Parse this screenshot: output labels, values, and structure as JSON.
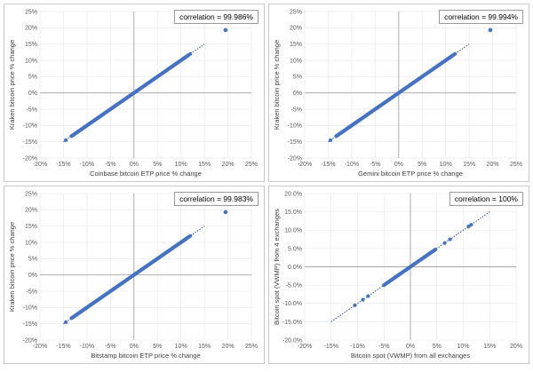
{
  "chart_data": [
    {
      "type": "scatter",
      "id": "kraken_vs_coinbase",
      "xlabel": "Coinbase bitcoin ETP price % change",
      "ylabel": "Kraken bitcoin price % change",
      "xlim": [
        -20,
        25
      ],
      "ylim": [
        -20,
        25
      ],
      "xticks": [
        "-20%",
        "-15%",
        "-10%",
        "-5%",
        "0%",
        "5%",
        "10%",
        "15%",
        "20%",
        "25%"
      ],
      "yticks": [
        "-20%",
        "-15%",
        "-10%",
        "-5%",
        "0%",
        "5%",
        "10%",
        "15%",
        "20%",
        "25%"
      ],
      "annotation": "correlation = 99.986%",
      "trendline": {
        "style": "dotted",
        "x_range": [
          -15,
          15
        ]
      },
      "outlier": {
        "x": 19.5,
        "y": 19.3
      },
      "point_range": [
        -14.5,
        12
      ]
    },
    {
      "type": "scatter",
      "id": "kraken_vs_gemini",
      "xlabel": "Gemini bitcoin ETP price % change",
      "ylabel": "Kraken bitcoin price % change",
      "xlim": [
        -20,
        25
      ],
      "ylim": [
        -20,
        25
      ],
      "xticks": [
        "-20%",
        "-15%",
        "-10%",
        "-5%",
        "0%",
        "5%",
        "10%",
        "15%",
        "20%",
        "25%"
      ],
      "yticks": [
        "-20%",
        "-15%",
        "-10%",
        "-5%",
        "0%",
        "5%",
        "10%",
        "15%",
        "20%",
        "25%"
      ],
      "annotation": "correlation = 99.994%",
      "trendline": {
        "style": "dotted",
        "x_range": [
          -15,
          15
        ]
      },
      "outlier": {
        "x": 19.5,
        "y": 19.3
      },
      "point_range": [
        -14.5,
        12
      ]
    },
    {
      "type": "scatter",
      "id": "kraken_vs_bitstamp",
      "xlabel": "Bitstamp bitcoin ETP price % change",
      "ylabel": "Kraken bitcoin price % change",
      "xlim": [
        -20,
        25
      ],
      "ylim": [
        -20,
        25
      ],
      "xticks": [
        "-20%",
        "-15%",
        "-10%",
        "-5%",
        "0%",
        "5%",
        "10%",
        "15%",
        "20%",
        "25%"
      ],
      "yticks": [
        "-20%",
        "-15%",
        "-10%",
        "-5%",
        "0%",
        "5%",
        "10%",
        "15%",
        "20%",
        "25%"
      ],
      "annotation": "correlation = 99.983%",
      "trendline": {
        "style": "dotted",
        "x_range": [
          -15,
          15
        ]
      },
      "outlier": {
        "x": 19.5,
        "y": 19.3
      },
      "point_range": [
        -14.5,
        12
      ]
    },
    {
      "type": "scatter",
      "id": "vwmp_4_vs_all",
      "xlabel": "Bitcoin spot (VWMP) from all exchanges",
      "ylabel": "Bitcoin spot (VWMP) from 4 exchanges",
      "xlim": [
        -20,
        20
      ],
      "ylim": [
        -20,
        20
      ],
      "xticks": [
        "-20%",
        "-15%",
        "-10%",
        "-5%",
        "0%",
        "5%",
        "10%",
        "15%",
        "20%"
      ],
      "yticks": [
        "-20.0%",
        "-15.0%",
        "-10.0%",
        "-5.0%",
        "0.0%",
        "5.0%",
        "10.0%",
        "15.0%",
        "20.0%"
      ],
      "annotation": "correlation = 100%",
      "trendline": {
        "style": "dotted",
        "x_range": [
          -15,
          15
        ]
      },
      "points_extra": [
        -10.5,
        -9,
        -8,
        -5,
        6.5,
        7.5,
        11,
        11.5
      ],
      "point_range": [
        -6,
        5.5
      ]
    }
  ],
  "colors": {
    "marker": "#4472c4",
    "trend": "#2f5597",
    "zero_axis": "#a6a6a6",
    "grid": "#e6e6e6",
    "frame": "#c8c8c8"
  }
}
